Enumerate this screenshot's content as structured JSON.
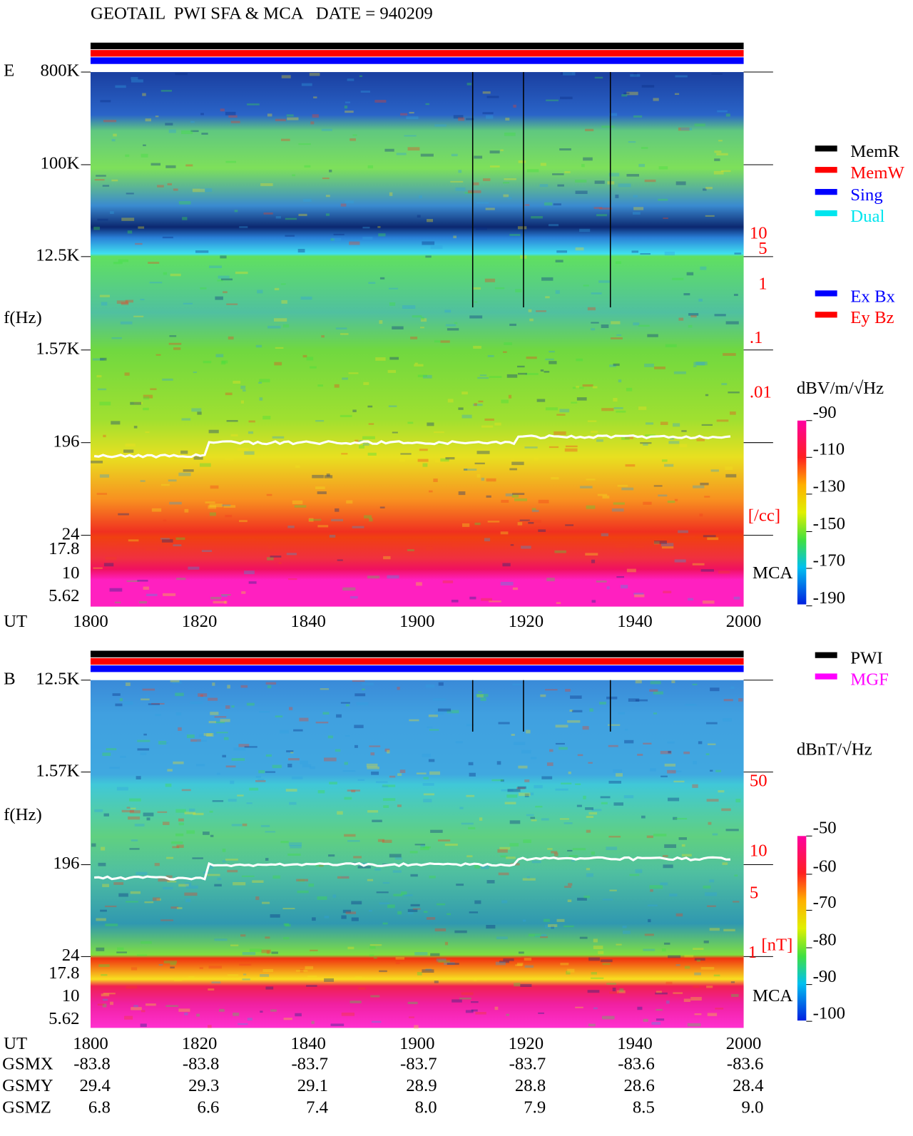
{
  "title": "GEOTAIL  PWI SFA & MCA   DATE = 940209",
  "panels": [
    {
      "component": "E",
      "freq_labels": [
        "800K",
        "100K",
        "12.5K",
        "1.57K",
        "196",
        "24",
        "17.8",
        "10",
        "5.62"
      ],
      "y_axis_label": "f(Hz)",
      "right_labels": [
        "10",
        "5",
        "1",
        ".1",
        ".01",
        "[/cc]"
      ],
      "mca_label": "MCA",
      "colorbar_unit": "dBV/m/√Hz",
      "colorbar_labels": [
        "-90",
        "-110",
        "-130",
        "-150",
        "-170",
        "-190"
      ],
      "legend": [
        {
          "text": "MemR",
          "color": "#000000"
        },
        {
          "text": "MemW",
          "color": "#ff0000"
        },
        {
          "text": "Sing",
          "color": "#0000ff"
        },
        {
          "text": "Dual",
          "color": "#00e5ee"
        },
        {
          "text": "Ex Bx",
          "color": "#0000ff"
        },
        {
          "text": "Ey Bz",
          "color": "#ff0000"
        }
      ]
    },
    {
      "component": "B",
      "freq_labels": [
        "12.5K",
        "1.57K",
        "196",
        "24",
        "17.8",
        "10",
        "5.62"
      ],
      "y_axis_label": "f(Hz)",
      "right_labels": [
        "50",
        "10",
        "5",
        "1",
        "[nT]"
      ],
      "mca_label": "MCA",
      "colorbar_unit": "dBnT/√Hz",
      "colorbar_labels": [
        "-50",
        "-60",
        "-70",
        "-80",
        "-90",
        "-100"
      ],
      "legend": [
        {
          "text": "PWI",
          "color": "#000000"
        },
        {
          "text": "MGF",
          "color": "#ff00ff"
        }
      ]
    }
  ],
  "time_axis": {
    "label": "UT",
    "ticks": [
      "1800",
      "1820",
      "1840",
      "1900",
      "1920",
      "1940",
      "2000"
    ]
  },
  "orbit": [
    {
      "label": "GSMX",
      "values": [
        "-83.8",
        "-83.8",
        "-83.7",
        "-83.7",
        "-83.7",
        "-83.6",
        "-83.6"
      ]
    },
    {
      "label": "GSMY",
      "values": [
        "29.4",
        "29.3",
        "29.1",
        "28.9",
        "28.8",
        "28.6",
        "28.4"
      ]
    },
    {
      "label": "GSMZ",
      "values": [
        "6.8",
        "6.6",
        "7.4",
        "8.0",
        "7.9",
        "8.5",
        "9.0"
      ]
    }
  ]
}
